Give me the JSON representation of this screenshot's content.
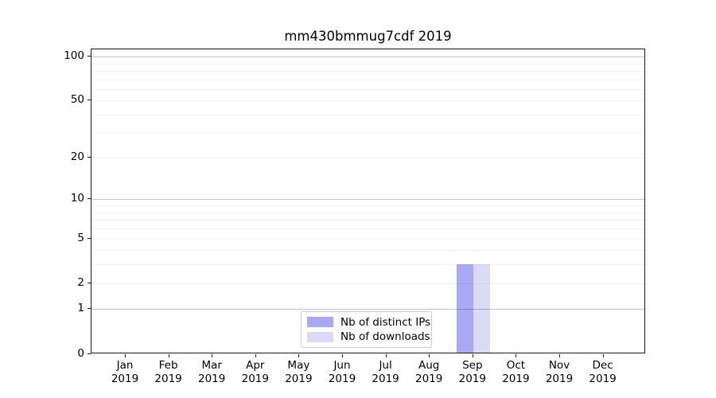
{
  "title": "mm430bmmug7cdf 2019",
  "chart_data": {
    "type": "bar",
    "title": "mm430bmmug7cdf 2019",
    "x_tick_months": [
      "Jan",
      "Feb",
      "Mar",
      "Apr",
      "May",
      "Jun",
      "Jul",
      "Aug",
      "Sep",
      "Oct",
      "Nov",
      "Dec"
    ],
    "x_tick_year": "2019",
    "series": [
      {
        "name": "Nb of distinct IPs",
        "color": "#a9a9f3",
        "values": [
          0,
          0,
          0,
          0,
          0,
          0,
          0,
          0,
          3,
          0,
          0,
          0
        ]
      },
      {
        "name": "Nb of downloads",
        "color": "#dbdbf9",
        "values": [
          0,
          0,
          0,
          0,
          0,
          0,
          0,
          0,
          3,
          0,
          0,
          0
        ]
      }
    ],
    "yscale": "log1p",
    "ylim": [
      0,
      112
    ],
    "y_tick_values": [
      0,
      1,
      2,
      5,
      10,
      20,
      50,
      100
    ],
    "y_major_gridlines": [
      1,
      10,
      100
    ],
    "y_minor_gridlines": [
      2,
      3,
      4,
      5,
      6,
      7,
      8,
      9,
      20,
      30,
      40,
      50,
      60,
      70,
      80,
      90
    ],
    "grid": true,
    "legend_position": "lower center"
  }
}
